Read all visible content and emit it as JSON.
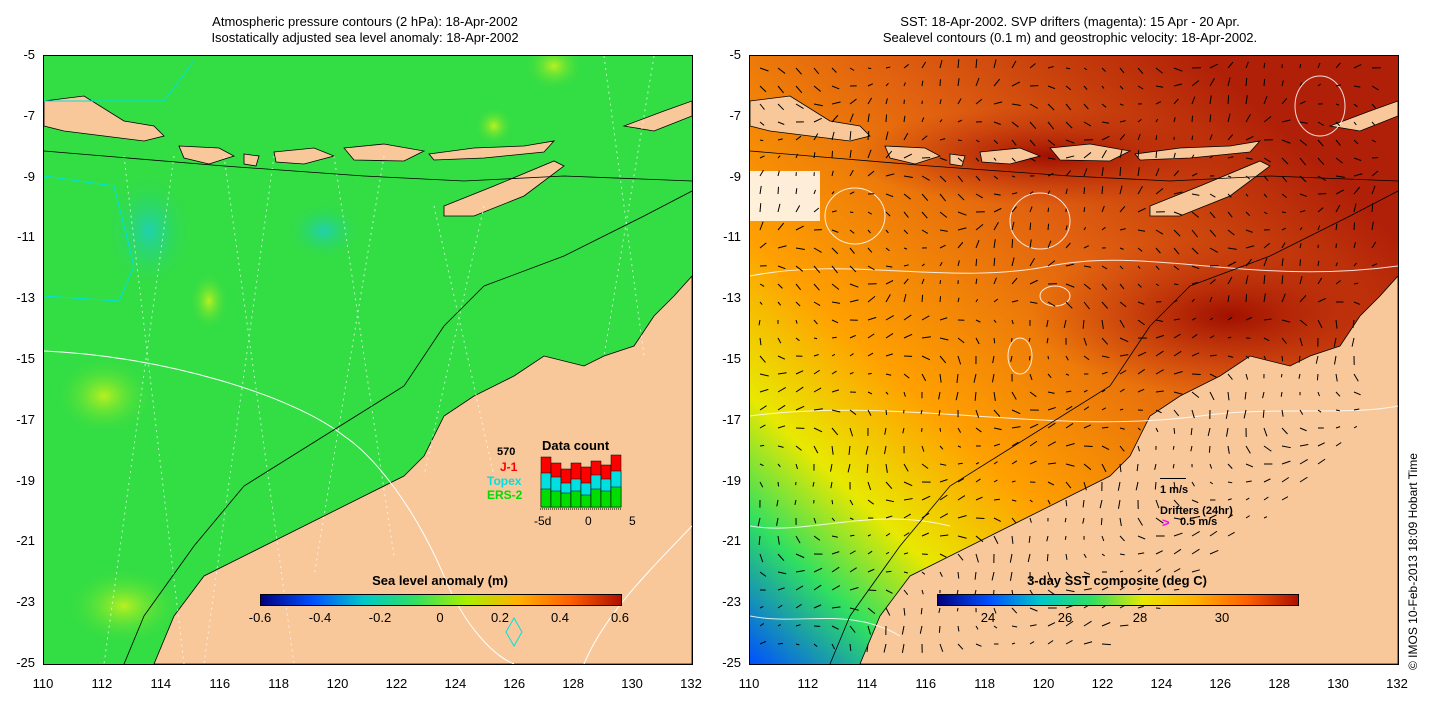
{
  "left": {
    "title_line1": "Atmospheric pressure contours (2 hPa): 18-Apr-2002",
    "title_line2": "Isostatically adjusted sea level anomaly: 18-Apr-2002",
    "colorbar_title": "Sea level anomaly (m)",
    "colorbar_ticks": [
      "-0.6",
      "-0.4",
      "-0.2",
      "0",
      "0.2",
      "0.4",
      "0.6"
    ],
    "colorbar_colors": [
      "#00007f",
      "#0050ff",
      "#00c8c8",
      "#30e060",
      "#a8f000",
      "#ffb000",
      "#ff6000",
      "#b01000"
    ],
    "data_count": {
      "title": "Data count",
      "max_label": "570",
      "series": [
        {
          "name": "J-1",
          "color": "#ff0000"
        },
        {
          "name": "Topex",
          "color": "#00e0e0"
        },
        {
          "name": "ERS-2",
          "color": "#00dd00"
        }
      ],
      "xlabels": [
        "-5d",
        "0",
        "5"
      ]
    }
  },
  "right": {
    "title_line1": "SST: 18-Apr-2002. SVP drifters (magenta): 15 Apr - 20 Apr.",
    "title_line2": "Sealevel contours (0.1 m) and geostrophic velocity: 18-Apr-2002.",
    "colorbar_title": "3-day SST composite (deg C)",
    "colorbar_ticks": [
      "24",
      "26",
      "28",
      "30"
    ],
    "colorbar_colors": [
      "#00007f",
      "#0050ff",
      "#00c8c8",
      "#30e060",
      "#e8e800",
      "#ffb000",
      "#ff6000",
      "#b01000"
    ],
    "velocity_scale": "1 m/s",
    "drifters_label": "Drifters (24hr)",
    "drifter_speed": "0.5 m/s"
  },
  "yaxis": [
    "-5",
    "-7",
    "-9",
    "-11",
    "-13",
    "-15",
    "-17",
    "-19",
    "-21",
    "-23",
    "-25"
  ],
  "xaxis": [
    "110",
    "112",
    "114",
    "116",
    "118",
    "120",
    "122",
    "124",
    "126",
    "128",
    "130",
    "132"
  ],
  "credit": "© IMOS 10-Feb-2013 18:09 Hobart Time",
  "colors": {
    "land": "#f8c89a",
    "sea_left": "#33dd44",
    "sea_right": "#e07010"
  }
}
